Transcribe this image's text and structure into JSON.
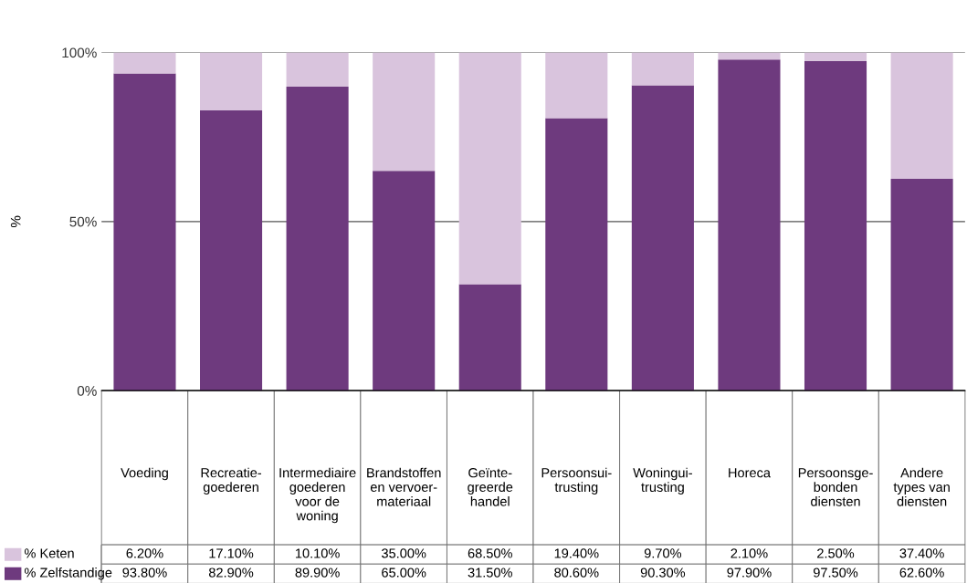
{
  "chart_data": {
    "type": "bar",
    "stacked": true,
    "ylabel": "%",
    "categories": [
      "Voeding",
      "Recreatie-\ngoederen",
      "Intermediaire\ngoederen\nvoor de\nwoning",
      "Brandstoffen\nen vervoer-\nmateriaal",
      "Geïnte-\ngreerde\nhandel",
      "Persoonsui-\ntrusting",
      "Woningui-\ntrusting",
      "Horeca",
      "Persoonsge-\nbonden\ndiensten",
      "Andere\ntypes van\ndiensten"
    ],
    "series": [
      {
        "name": "% Zelfstandige",
        "color": "#6e3a7e",
        "values": [
          93.8,
          82.9,
          89.9,
          65.0,
          31.5,
          80.6,
          90.3,
          97.9,
          97.5,
          62.6
        ],
        "value_labels": [
          "93.80%",
          "82.90%",
          "89.90%",
          "65.00%",
          "31.50%",
          "80.60%",
          "90.30%",
          "97.90%",
          "97.50%",
          "62.60%"
        ]
      },
      {
        "name": "% Keten",
        "color": "#d9c4dd",
        "values": [
          6.2,
          17.1,
          10.1,
          35.0,
          68.5,
          19.4,
          9.7,
          2.1,
          2.5,
          37.4
        ],
        "value_labels": [
          "6.20%",
          "17.10%",
          "10.10%",
          "35.00%",
          "68.50%",
          "19.40%",
          "9.70%",
          "2.10%",
          "2.50%",
          "37.40%"
        ]
      }
    ],
    "ylim": [
      0,
      100
    ],
    "yticks": [
      {
        "value": 0,
        "label": "0%"
      },
      {
        "value": 50,
        "label": "50%"
      },
      {
        "value": 100,
        "label": "100%"
      }
    ],
    "grid": "y",
    "legend": "bottom"
  }
}
